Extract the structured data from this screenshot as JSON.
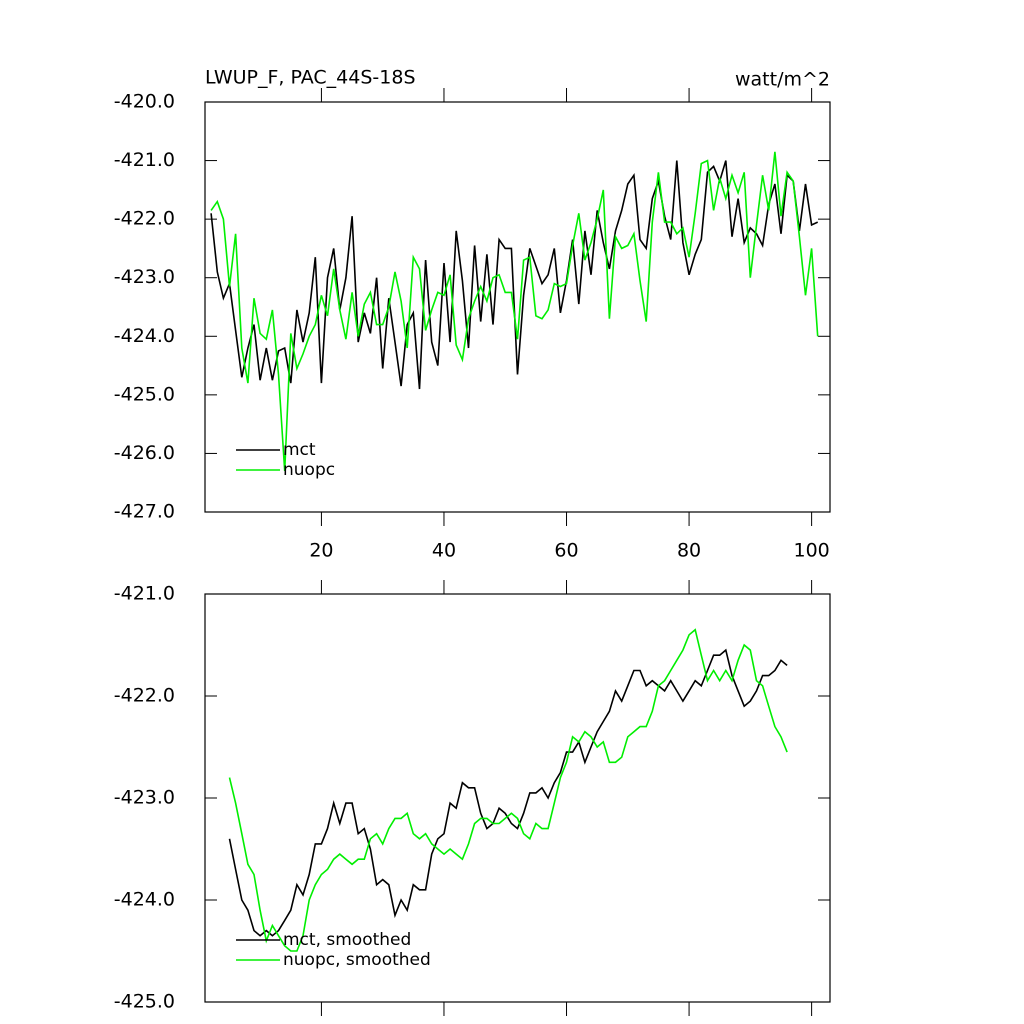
{
  "chart_data": [
    {
      "type": "line",
      "title": "LWUP_F, PAC_44S-18S",
      "units": "watt/m^2",
      "x": [
        2,
        3,
        4,
        5,
        6,
        7,
        8,
        9,
        10,
        11,
        12,
        13,
        14,
        15,
        16,
        17,
        18,
        19,
        20,
        21,
        22,
        23,
        24,
        25,
        26,
        27,
        28,
        29,
        30,
        31,
        32,
        33,
        34,
        35,
        36,
        37,
        38,
        39,
        40,
        41,
        42,
        43,
        44,
        45,
        46,
        47,
        48,
        49,
        50,
        51,
        52,
        53,
        54,
        55,
        56,
        57,
        58,
        59,
        60,
        61,
        62,
        63,
        64,
        65,
        66,
        67,
        68,
        69,
        70,
        71,
        72,
        73,
        74,
        75,
        76,
        77,
        78,
        79,
        80,
        81,
        82,
        83,
        84,
        85,
        86,
        87,
        88,
        89,
        90,
        91,
        92,
        93,
        94,
        95,
        96,
        97,
        98,
        99,
        100,
        101
      ],
      "series": [
        {
          "name": "mct",
          "color": "#000000",
          "values": [
            -421.9,
            -422.9,
            -423.35,
            -423.1,
            -423.9,
            -424.7,
            -424.2,
            -423.8,
            -424.75,
            -424.2,
            -424.75,
            -424.25,
            -424.2,
            -424.8,
            -423.55,
            -424.1,
            -423.6,
            -422.65,
            -424.8,
            -423.0,
            -422.5,
            -423.55,
            -423.0,
            -421.95,
            -424.1,
            -423.6,
            -423.95,
            -423.0,
            -424.55,
            -423.35,
            -424.1,
            -424.85,
            -423.8,
            -423.6,
            -424.9,
            -422.7,
            -424.1,
            -424.5,
            -422.75,
            -424.1,
            -422.2,
            -423.05,
            -424.2,
            -422.45,
            -423.75,
            -422.6,
            -423.8,
            -422.35,
            -422.5,
            -422.5,
            -424.65,
            -423.3,
            -422.5,
            -422.8,
            -423.1,
            -422.95,
            -422.5,
            -423.6,
            -423.05,
            -422.35,
            -423.45,
            -422.2,
            -422.95,
            -421.85,
            -422.4,
            -422.85,
            -422.2,
            -421.85,
            -421.4,
            -421.25,
            -422.35,
            -422.5,
            -421.65,
            -421.35,
            -421.95,
            -422.35,
            -421.0,
            -422.4,
            -422.95,
            -422.6,
            -422.35,
            -421.2,
            -421.1,
            -421.35,
            -421.0,
            -422.3,
            -421.65,
            -422.4,
            -422.15,
            -422.25,
            -422.45,
            -421.75,
            -421.4,
            -422.25,
            -421.25,
            -421.35,
            -422.2,
            -421.4,
            -422.1,
            -422.05
          ]
        },
        {
          "name": "nuopc",
          "color": "#00ee00",
          "values": [
            -421.85,
            -421.7,
            -422.0,
            -423.15,
            -422.25,
            -424.2,
            -424.8,
            -423.35,
            -423.95,
            -424.05,
            -423.55,
            -424.65,
            -426.3,
            -423.95,
            -424.55,
            -424.3,
            -424.0,
            -423.8,
            -423.3,
            -423.65,
            -422.85,
            -423.55,
            -424.05,
            -423.25,
            -424.0,
            -423.45,
            -423.25,
            -423.8,
            -423.8,
            -423.5,
            -422.9,
            -423.4,
            -424.2,
            -422.65,
            -422.85,
            -423.9,
            -423.55,
            -423.25,
            -423.3,
            -422.95,
            -424.15,
            -424.4,
            -423.7,
            -423.4,
            -423.15,
            -423.4,
            -423.0,
            -422.95,
            -423.25,
            -423.25,
            -424.05,
            -422.7,
            -422.65,
            -423.65,
            -423.7,
            -423.55,
            -423.1,
            -423.15,
            -423.1,
            -422.45,
            -421.9,
            -422.7,
            -422.4,
            -422.0,
            -421.5,
            -423.7,
            -422.3,
            -422.5,
            -422.45,
            -422.25,
            -423.05,
            -423.75,
            -422.05,
            -421.2,
            -422.05,
            -422.05,
            -422.25,
            -422.15,
            -422.65,
            -421.9,
            -421.05,
            -421.0,
            -421.85,
            -421.3,
            -421.65,
            -421.25,
            -421.55,
            -421.2,
            -423.0,
            -422.1,
            -421.25,
            -421.85,
            -420.85,
            -421.95,
            -421.2,
            -421.35,
            -422.3,
            -423.3,
            -422.5,
            -424.0
          ]
        }
      ],
      "xlim": [
        1,
        103
      ],
      "xticks": [
        20,
        40,
        60,
        80,
        100
      ],
      "show_xtick_labels": true,
      "ylim": [
        -427,
        -420
      ],
      "yticks": [
        {
          "value": -420,
          "label": "-420.0"
        },
        {
          "value": -421,
          "label": "-421.0"
        },
        {
          "value": -422,
          "label": "-422.0"
        },
        {
          "value": -423,
          "label": "-423.0"
        },
        {
          "value": -424,
          "label": "-424.0"
        },
        {
          "value": -425,
          "label": "-425.0"
        },
        {
          "value": -426,
          "label": "-426.0"
        },
        {
          "value": -427,
          "label": "-427.0"
        }
      ],
      "legend": "lower left"
    },
    {
      "type": "line",
      "x": [
        5,
        6,
        7,
        8,
        9,
        10,
        11,
        12,
        13,
        14,
        15,
        16,
        17,
        18,
        19,
        20,
        21,
        22,
        23,
        24,
        25,
        26,
        27,
        28,
        29,
        30,
        31,
        32,
        33,
        34,
        35,
        36,
        37,
        38,
        39,
        40,
        41,
        42,
        43,
        44,
        45,
        46,
        47,
        48,
        49,
        50,
        51,
        52,
        53,
        54,
        55,
        56,
        57,
        58,
        59,
        60,
        61,
        62,
        63,
        64,
        65,
        66,
        67,
        68,
        69,
        70,
        71,
        72,
        73,
        74,
        75,
        76,
        77,
        78,
        79,
        80,
        81,
        82,
        83,
        84,
        85,
        86,
        87,
        88,
        89,
        90,
        91,
        92,
        93,
        94,
        95,
        96
      ],
      "series": [
        {
          "name": "mct, smoothed",
          "color": "#000000",
          "values": [
            -423.4,
            -423.7,
            -424.0,
            -424.1,
            -424.3,
            -424.35,
            -424.3,
            -424.35,
            -424.3,
            -424.2,
            -424.1,
            -423.85,
            -423.95,
            -423.75,
            -423.45,
            -423.45,
            -423.3,
            -423.05,
            -423.25,
            -423.05,
            -423.05,
            -423.35,
            -423.3,
            -423.5,
            -423.85,
            -423.8,
            -423.85,
            -424.15,
            -424.0,
            -424.1,
            -423.85,
            -423.9,
            -423.9,
            -423.55,
            -423.4,
            -423.35,
            -423.05,
            -423.1,
            -422.85,
            -422.9,
            -422.9,
            -423.15,
            -423.3,
            -423.25,
            -423.1,
            -423.15,
            -423.25,
            -423.3,
            -423.15,
            -422.95,
            -422.95,
            -422.9,
            -423.0,
            -422.85,
            -422.75,
            -422.55,
            -422.55,
            -422.45,
            -422.65,
            -422.5,
            -422.35,
            -422.25,
            -422.15,
            -421.95,
            -422.05,
            -421.9,
            -421.75,
            -421.75,
            -421.9,
            -421.85,
            -421.9,
            -421.95,
            -421.85,
            -421.95,
            -422.05,
            -421.95,
            -421.85,
            -421.9,
            -421.75,
            -421.6,
            -421.6,
            -421.55,
            -421.8,
            -421.95,
            -422.1,
            -422.05,
            -421.95,
            -421.8,
            -421.8,
            -421.75,
            -421.65,
            -421.7
          ]
        },
        {
          "name": "nuopc, smoothed",
          "color": "#00ee00",
          "values": [
            -422.8,
            -423.05,
            -423.35,
            -423.65,
            -423.75,
            -424.1,
            -424.4,
            -424.25,
            -424.35,
            -424.45,
            -424.5,
            -424.5,
            -424.35,
            -424.0,
            -423.85,
            -423.75,
            -423.7,
            -423.6,
            -423.55,
            -423.6,
            -423.65,
            -423.6,
            -423.6,
            -423.4,
            -423.35,
            -423.45,
            -423.3,
            -423.2,
            -423.2,
            -423.15,
            -423.35,
            -423.4,
            -423.35,
            -423.45,
            -423.5,
            -423.55,
            -423.5,
            -423.55,
            -423.6,
            -423.45,
            -423.25,
            -423.2,
            -423.2,
            -423.25,
            -423.25,
            -423.2,
            -423.15,
            -423.2,
            -423.35,
            -423.4,
            -423.25,
            -423.3,
            -423.3,
            -423.05,
            -422.8,
            -422.65,
            -422.4,
            -422.45,
            -422.35,
            -422.4,
            -422.5,
            -422.45,
            -422.65,
            -422.65,
            -422.6,
            -422.4,
            -422.35,
            -422.3,
            -422.3,
            -422.15,
            -421.9,
            -421.85,
            -421.75,
            -421.65,
            -421.55,
            -421.4,
            -421.35,
            -421.6,
            -421.85,
            -421.75,
            -421.85,
            -421.75,
            -421.85,
            -421.65,
            -421.5,
            -421.55,
            -421.85,
            -421.9,
            -422.1,
            -422.3,
            -422.4,
            -422.55
          ]
        }
      ],
      "xlim": [
        1,
        103
      ],
      "xticks": [
        20,
        40,
        60,
        80,
        100
      ],
      "show_xtick_labels": false,
      "ylim": [
        -425,
        -421
      ],
      "yticks": [
        {
          "value": -421,
          "label": "-421.0"
        },
        {
          "value": -422,
          "label": "-422.0"
        },
        {
          "value": -423,
          "label": "-423.0"
        },
        {
          "value": -424,
          "label": "-424.0"
        },
        {
          "value": -425,
          "label": "-425.0"
        }
      ],
      "legend": "lower left"
    }
  ]
}
